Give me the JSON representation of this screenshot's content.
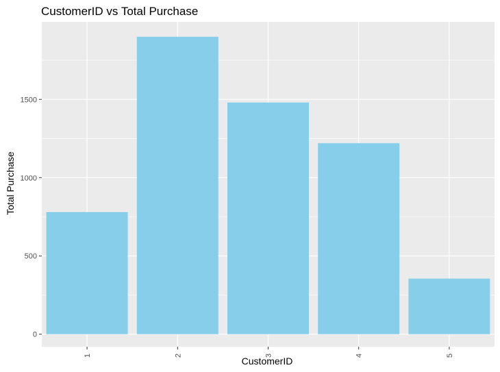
{
  "chart_data": {
    "type": "bar",
    "title": "CustomerID vs Total Purchase",
    "xlabel": "CustomerID",
    "ylabel": "Total Purchase",
    "categories": [
      "1",
      "2",
      "3",
      "4",
      "5"
    ],
    "values": [
      780,
      1900,
      1480,
      1220,
      355
    ],
    "ylim": [
      -80,
      1995
    ],
    "yticks": [
      0,
      500,
      1000,
      1500
    ],
    "grid": true,
    "legend": "none",
    "x_tick_rotation": -90,
    "colors": {
      "bar": "#87CEEB",
      "panel_background": "#EBEBEB",
      "grid": "#FFFFFF"
    }
  }
}
